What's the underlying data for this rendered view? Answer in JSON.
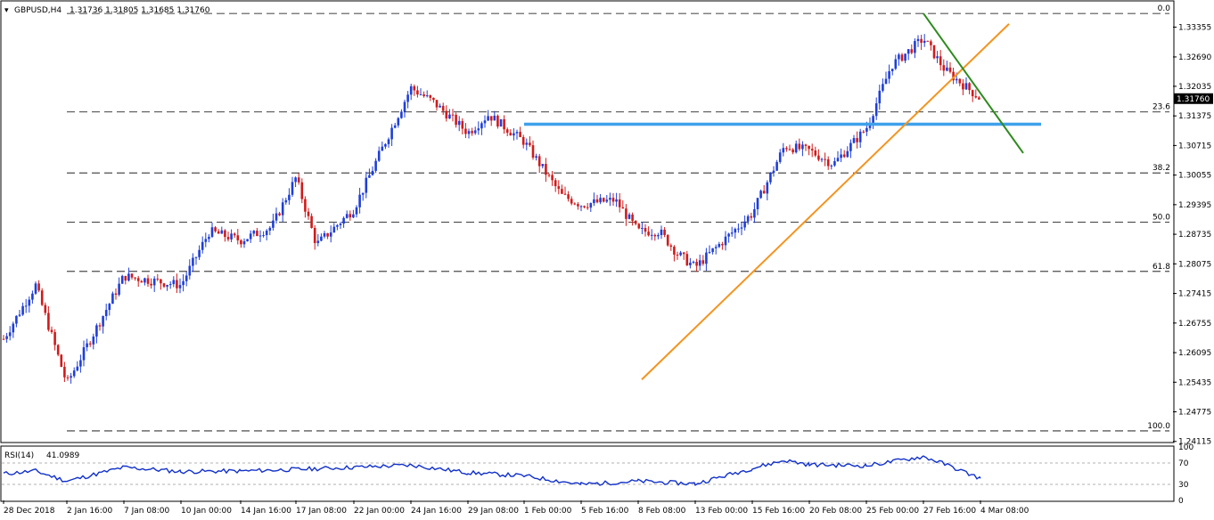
{
  "header": {
    "symbol": "GBPUSD,H4",
    "ohlc": "1.31736 1.31805 1.31685 1.31760"
  },
  "rsi_header": {
    "label": "RSI(14)",
    "value": "41.0989"
  },
  "colors": {
    "bull": "#1f3fd6",
    "bear": "#d01b1b",
    "horizontal_level": "#3fa0ea",
    "support_trendline": "#f39420",
    "resistance_trendline": "#2e8b1e",
    "rsi_line": "#1030c8",
    "price_tag_bg": "#000000"
  },
  "chart_data": [
    {
      "type": "candlestick",
      "symbol": "GBPUSD",
      "timeframe": "H4",
      "ylim": [
        1.2411,
        1.3392
      ],
      "y_ticks": [
        "1.33355",
        "1.32690",
        "1.32035",
        "1.31375",
        "1.30715",
        "1.30055",
        "1.29395",
        "1.28735",
        "1.28075",
        "1.27415",
        "1.26755",
        "1.26095",
        "1.25435",
        "1.24775",
        "1.24115"
      ],
      "x_ticks": [
        "28 Dec 2018",
        "2 Jan 16:00",
        "7 Jan 08:00",
        "10 Jan 00:00",
        "14 Jan 16:00",
        "17 Jan 08:00",
        "22 Jan 00:00",
        "24 Jan 16:00",
        "29 Jan 08:00",
        "1 Feb 00:00",
        "5 Feb 16:00",
        "8 Feb 08:00",
        "13 Feb 00:00",
        "15 Feb 16:00",
        "20 Feb 08:00",
        "25 Feb 00:00",
        "27 Feb 16:00",
        "4 Mar 08:00"
      ],
      "current_price": "1.31760",
      "fibonacci": {
        "high": 1.3366,
        "low": 1.2435,
        "levels": [
          {
            "label": "0.0",
            "ratio": 0.0
          },
          {
            "label": "23.6",
            "ratio": 0.236
          },
          {
            "label": "38.2",
            "ratio": 0.382
          },
          {
            "label": "50.0",
            "ratio": 0.5
          },
          {
            "label": "61.8",
            "ratio": 0.618
          },
          {
            "label": "100.0",
            "ratio": 1.0
          }
        ]
      },
      "horizontal_level": {
        "price": 1.3119,
        "from": "1 Feb 00:00",
        "to": "4 Mar 08:00"
      },
      "trendlines": [
        {
          "name": "support",
          "from": {
            "date": "13 Feb 00:00",
            "price": 1.2665
          },
          "to": {
            "date": "4 Mar 08:00",
            "price": 1.3281
          }
        },
        {
          "name": "resistance",
          "from": {
            "date": "27 Feb 16:00",
            "price": 1.3366
          },
          "to": {
            "date": "4 Mar 08:00",
            "price": 1.3188
          }
        }
      ],
      "anchors": [
        {
          "x": "28 Dec 2018",
          "price": 1.264
        },
        {
          "x": "31 Dec",
          "price": 1.276
        },
        {
          "x": "2 Jan 16:00",
          "price": 1.254
        },
        {
          "x": "7 Jan 08:00",
          "price": 1.278
        },
        {
          "x": "10 Jan 00:00",
          "price": 1.276
        },
        {
          "x": "11 Jan",
          "price": 1.288
        },
        {
          "x": "14 Jan 16:00",
          "price": 1.286
        },
        {
          "x": "16 Jan",
          "price": 1.289
        },
        {
          "x": "17 Jan 08:00",
          "price": 1.3
        },
        {
          "x": "18 Jan",
          "price": 1.285
        },
        {
          "x": "22 Jan 00:00",
          "price": 1.293
        },
        {
          "x": "23 Jan",
          "price": 1.307
        },
        {
          "x": "24 Jan 16:00",
          "price": 1.32
        },
        {
          "x": "25 Jan",
          "price": 1.317
        },
        {
          "x": "29 Jan 08:00",
          "price": 1.31
        },
        {
          "x": "30 Jan",
          "price": 1.314
        },
        {
          "x": "1 Feb 00:00",
          "price": 1.308
        },
        {
          "x": "4 Feb",
          "price": 1.296
        },
        {
          "x": "5 Feb 16:00",
          "price": 1.294
        },
        {
          "x": "7 Feb",
          "price": 1.295
        },
        {
          "x": "8 Feb 08:00",
          "price": 1.288
        },
        {
          "x": "11 Feb",
          "price": 1.288
        },
        {
          "x": "12 Feb",
          "price": 1.283
        },
        {
          "x": "13 Feb 00:00",
          "price": 1.28
        },
        {
          "x": "15 Feb 16:00",
          "price": 1.292
        },
        {
          "x": "18 Feb",
          "price": 1.307
        },
        {
          "x": "20 Feb 08:00",
          "price": 1.306
        },
        {
          "x": "21 Feb",
          "price": 1.303
        },
        {
          "x": "25 Feb 00:00",
          "price": 1.311
        },
        {
          "x": "26 Feb",
          "price": 1.325
        },
        {
          "x": "27 Feb 16:00",
          "price": 1.331
        },
        {
          "x": "1 Mar",
          "price": 1.324
        },
        {
          "x": "4 Mar 08:00",
          "price": 1.3176
        }
      ]
    },
    {
      "type": "line",
      "name": "RSI(14)",
      "ylim": [
        0,
        100
      ],
      "y_ticks": [
        "100",
        "70",
        "30",
        "0"
      ],
      "levels": [
        70,
        30
      ],
      "anchors": [
        {
          "x": "28 Dec 2018",
          "value": 50
        },
        {
          "x": "31 Dec",
          "value": 55
        },
        {
          "x": "2 Jan 16:00",
          "value": 36
        },
        {
          "x": "7 Jan 08:00",
          "value": 62
        },
        {
          "x": "10 Jan 00:00",
          "value": 54
        },
        {
          "x": "14 Jan 16:00",
          "value": 55
        },
        {
          "x": "17 Jan 08:00",
          "value": 58
        },
        {
          "x": "22 Jan 00:00",
          "value": 62
        },
        {
          "x": "24 Jan 16:00",
          "value": 66
        },
        {
          "x": "29 Jan 08:00",
          "value": 52
        },
        {
          "x": "1 Feb 00:00",
          "value": 46
        },
        {
          "x": "5 Feb 16:00",
          "value": 30
        },
        {
          "x": "8 Feb 08:00",
          "value": 36
        },
        {
          "x": "13 Feb 00:00",
          "value": 31
        },
        {
          "x": "15 Feb 16:00",
          "value": 60
        },
        {
          "x": "18 Feb",
          "value": 75
        },
        {
          "x": "20 Feb 08:00",
          "value": 67
        },
        {
          "x": "25 Feb 00:00",
          "value": 65
        },
        {
          "x": "27 Feb 16:00",
          "value": 82
        },
        {
          "x": "1 Mar",
          "value": 68
        },
        {
          "x": "4 Mar 08:00",
          "value": 41.1
        }
      ]
    }
  ]
}
